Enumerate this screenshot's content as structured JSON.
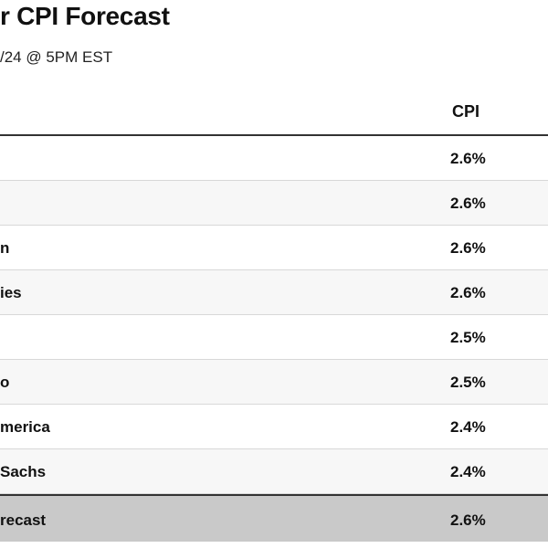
{
  "title": "r CPI Forecast",
  "subtitle": "/24 @ 5PM EST",
  "table": {
    "columns": [
      "",
      "CPI"
    ],
    "rows": [
      {
        "name": "",
        "cpi": "2.6%"
      },
      {
        "name": "",
        "cpi": "2.6%"
      },
      {
        "name": "n",
        "cpi": "2.6%"
      },
      {
        "name": "ies",
        "cpi": "2.6%"
      },
      {
        "name": "",
        "cpi": "2.5%"
      },
      {
        "name": "o",
        "cpi": "2.5%"
      },
      {
        "name": "merica",
        "cpi": "2.4%"
      },
      {
        "name": "Sachs",
        "cpi": "2.4%"
      }
    ],
    "total": {
      "name": "recast",
      "cpi": "2.6%"
    }
  }
}
